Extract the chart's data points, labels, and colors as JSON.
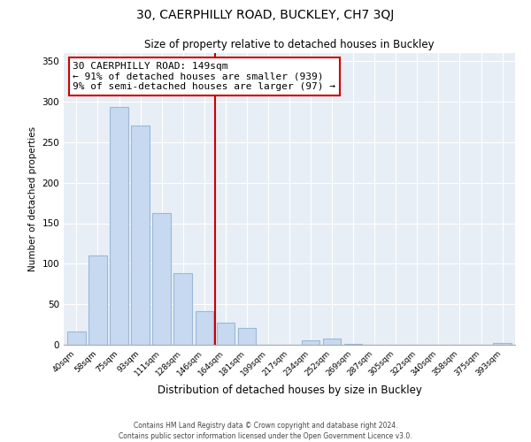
{
  "title1": "30, CAERPHILLY ROAD, BUCKLEY, CH7 3QJ",
  "title2": "Size of property relative to detached houses in Buckley",
  "xlabel": "Distribution of detached houses by size in Buckley",
  "ylabel": "Number of detached properties",
  "bar_labels": [
    "40sqm",
    "58sqm",
    "75sqm",
    "93sqm",
    "111sqm",
    "128sqm",
    "146sqm",
    "164sqm",
    "181sqm",
    "199sqm",
    "217sqm",
    "234sqm",
    "252sqm",
    "269sqm",
    "287sqm",
    "305sqm",
    "322sqm",
    "340sqm",
    "358sqm",
    "375sqm",
    "393sqm"
  ],
  "bar_values": [
    16,
    110,
    293,
    270,
    163,
    88,
    42,
    27,
    21,
    0,
    0,
    6,
    8,
    1,
    0,
    0,
    0,
    0,
    0,
    0,
    2
  ],
  "bar_color": "#c6d9f0",
  "bar_edge_color": "#9ab8d8",
  "vline_color": "#cc0000",
  "vline_x_index": 6.5,
  "annotation_title": "30 CAERPHILLY ROAD: 149sqm",
  "annotation_line1": "← 91% of detached houses are smaller (939)",
  "annotation_line2": "9% of semi-detached houses are larger (97) →",
  "annotation_box_color": "#ffffff",
  "annotation_box_edge": "#cc0000",
  "ylim": [
    0,
    360
  ],
  "yticks": [
    0,
    50,
    100,
    150,
    200,
    250,
    300,
    350
  ],
  "footer1": "Contains HM Land Registry data © Crown copyright and database right 2024.",
  "footer2": "Contains public sector information licensed under the Open Government Licence v3.0.",
  "bg_color": "#e8eef5"
}
